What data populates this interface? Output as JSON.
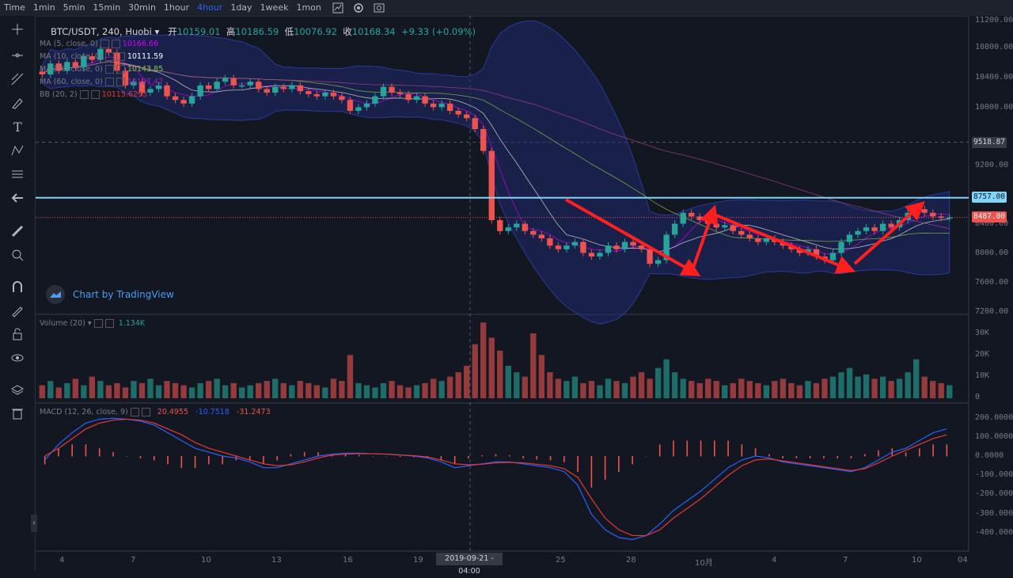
{
  "toolbar": {
    "timeframes": [
      "Time",
      "1min",
      "5min",
      "15min",
      "30min",
      "1hour",
      "4hour",
      "1day",
      "1week",
      "1mon"
    ],
    "active_timeframe": "4hour",
    "icons": [
      "indicator-icon",
      "settings-icon",
      "screenshot-icon"
    ]
  },
  "symbol": {
    "name": "BTC/USDT, 240, Huobi",
    "open_label": "开",
    "open": "10159.01",
    "high_label": "高",
    "high": "10186.59",
    "low_label": "低",
    "low": "10076.92",
    "close_label": "收",
    "close": "10168.34",
    "change": "+9.33 (+0.09%)"
  },
  "indicators": [
    {
      "label": "MA (5, close, 0)",
      "value": "10166.66",
      "color": "#d500f9"
    },
    {
      "label": "MA (10, close, 0)",
      "value": "10111.59",
      "color": "#ffffff"
    },
    {
      "label": "MA (30, close, 0)",
      "value": "10143.85",
      "color": "#8bc34a"
    },
    {
      "label": "MA (60, close, 0)",
      "value": "10197.42",
      "color": "#9c27b0"
    },
    {
      "label": "BB (20, 2)",
      "value": "10115.6295",
      "color": "#e53935"
    }
  ],
  "price_axis": [
    "11200.00",
    "10800.00",
    "10400.00",
    "10000.00",
    "9200.00",
    "8400.00",
    "8000.00",
    "7600.00",
    "7200.00"
  ],
  "price_tags": {
    "crosshair": "9518.87",
    "level": "8757.00",
    "last": "8487.00"
  },
  "volume": {
    "label": "Volume (20)",
    "value": "1.134K",
    "axis": [
      "30K",
      "20K",
      "10K",
      "0"
    ]
  },
  "macd": {
    "label": "MACD (12, 26, close, 9)",
    "hist": "20.4955",
    "macd": "-10.7518",
    "signal": "-31.2473",
    "axis": [
      "200.0000",
      "100.0000",
      "0.0000",
      "-100.0000",
      "-200.0000",
      "-300.0000",
      "-400.0000"
    ]
  },
  "dates": [
    "4",
    "7",
    "10",
    "13",
    "16",
    "19",
    "25",
    "28",
    "10月",
    "4",
    "7",
    "10",
    "04"
  ],
  "crosshair_date": "2019-09-21 - 04:00",
  "watermark": "Chart by TradingView",
  "colors": {
    "up": "#26a69a",
    "down": "#ef5350",
    "level": "#81d4fa",
    "arrow": "#ff1f1f",
    "bb": "#1f2a6b"
  },
  "chart_data": {
    "type": "candlestick",
    "series_closes": [
      10450,
      10600,
      10500,
      10620,
      10550,
      10700,
      10650,
      10800,
      10750,
      10500,
      10300,
      10350,
      10200,
      10250,
      10300,
      10150,
      10100,
      10050,
      10150,
      10300,
      10250,
      10350,
      10400,
      10300,
      10300,
      10350,
      10250,
      10200,
      10280,
      10250,
      10300,
      10220,
      10180,
      10150,
      10200,
      10150,
      10100,
      9950,
      10000,
      10050,
      10150,
      10280,
      10200,
      10180,
      10100,
      10150,
      10050,
      10000,
      10050,
      9950,
      9900,
      9850,
      9700,
      9400,
      8450,
      8300,
      8350,
      8400,
      8300,
      8250,
      8200,
      8100,
      8050,
      8100,
      8150,
      8000,
      7950,
      8000,
      8100,
      8050,
      8150,
      8100,
      8050,
      7850,
      7900,
      8250,
      8400,
      8550,
      8500,
      8450,
      8400,
      8350,
      8380,
      8300,
      8250,
      8200,
      8150,
      8200,
      8150,
      8100,
      8050,
      8000,
      8050,
      7950,
      7900,
      8000,
      8150,
      8250,
      8300,
      8350,
      8300,
      8400,
      8350,
      8450,
      8550,
      8600,
      8550,
      8500,
      8480,
      8487
    ],
    "levels": [
      8757,
      8487
    ],
    "volumes": [
      6,
      8,
      5,
      7,
      9,
      6,
      10,
      8,
      6,
      7,
      5,
      8,
      7,
      9,
      6,
      8,
      7,
      6,
      5,
      7,
      8,
      9,
      6,
      7,
      5,
      6,
      7,
      8,
      9,
      7,
      6,
      8,
      7,
      6,
      5,
      9,
      8,
      20,
      7,
      6,
      5,
      7,
      8,
      6,
      5,
      6,
      7,
      9,
      8,
      10,
      12,
      15,
      25,
      35,
      28,
      22,
      15,
      12,
      10,
      30,
      20,
      12,
      9,
      8,
      10,
      7,
      8,
      6,
      9,
      8,
      7,
      10,
      12,
      9,
      14,
      18,
      12,
      9,
      8,
      7,
      9,
      8,
      6,
      7,
      9,
      8,
      7,
      6,
      8,
      9,
      7,
      6,
      8,
      7,
      9,
      10,
      12,
      14,
      10,
      11,
      9,
      10,
      8,
      9,
      12,
      18,
      10,
      8,
      7,
      6
    ],
    "macd_line": [
      -20,
      60,
      120,
      170,
      190,
      195,
      190,
      180,
      160,
      120,
      80,
      40,
      20,
      0,
      -10,
      -30,
      -60,
      -60,
      -40,
      -20,
      0,
      10,
      15,
      15,
      12,
      10,
      5,
      0,
      -10,
      -30,
      -60,
      -50,
      -40,
      -30,
      -30,
      -40,
      -50,
      -60,
      -80,
      -150,
      -300,
      -380,
      -420,
      -430,
      -410,
      -350,
      -280,
      -230,
      -180,
      -120,
      -60,
      -20,
      0,
      -10,
      -30,
      -40,
      -50,
      -60,
      -70,
      -80,
      -60,
      -20,
      20,
      40,
      80,
      120,
      140
    ],
    "signal_line": [
      0,
      40,
      90,
      140,
      170,
      185,
      190,
      185,
      170,
      140,
      110,
      70,
      40,
      20,
      0,
      -20,
      -40,
      -50,
      -45,
      -30,
      -10,
      5,
      10,
      12,
      12,
      10,
      6,
      2,
      -5,
      -20,
      -40,
      -45,
      -42,
      -35,
      -32,
      -35,
      -42,
      -50,
      -65,
      -110,
      -220,
      -320,
      -380,
      -410,
      -410,
      -380,
      -320,
      -270,
      -220,
      -160,
      -100,
      -50,
      -20,
      -15,
      -25,
      -35,
      -45,
      -55,
      -65,
      -75,
      -65,
      -35,
      0,
      30,
      60,
      90,
      110
    ]
  }
}
